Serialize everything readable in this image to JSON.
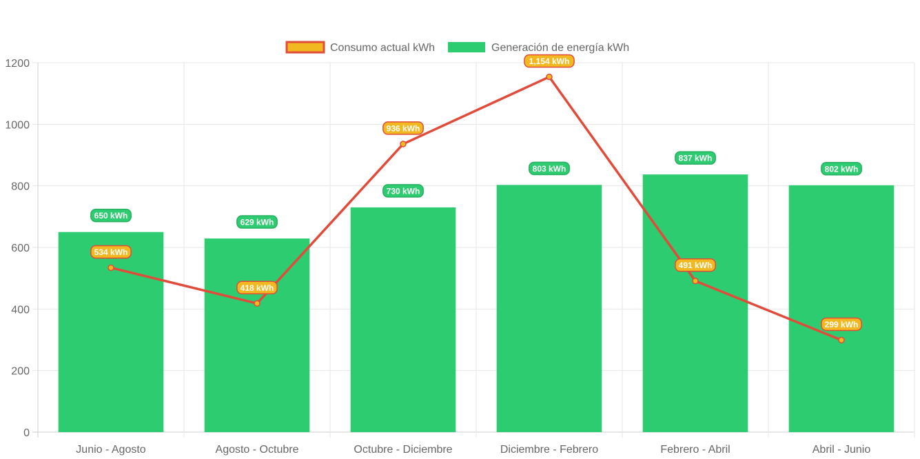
{
  "chart_data": {
    "type": "bar",
    "categories": [
      "Junio - Agosto",
      "Agosto - Octubre",
      "Octubre - Diciembre",
      "Diciembre - Febrero",
      "Febrero - Abril",
      "Abril - Junio"
    ],
    "ylim": [
      0,
      1200
    ],
    "yticks": [
      "0",
      "200",
      "400",
      "600",
      "800",
      "1000",
      "1200"
    ],
    "grid": true,
    "legend_position": "top",
    "series": [
      {
        "name": "Consumo actual kWh",
        "type": "line",
        "values": [
          534,
          418,
          936,
          1154,
          491,
          299
        ],
        "labels": [
          "534 kWh",
          "418 kWh",
          "936 kWh",
          "1,154 kWh",
          "491 kWh",
          "299 kWh"
        ],
        "color": "#e04b3a",
        "fill": "#f2b81f"
      },
      {
        "name": "Generación de energía kWh",
        "type": "bar",
        "values": [
          650,
          629,
          730,
          803,
          837,
          802
        ],
        "labels": [
          "650 kWh",
          "629 kWh",
          "730 kWh",
          "803 kWh",
          "837 kWh",
          "802 kWh"
        ],
        "color": "#2ecc71"
      }
    ]
  }
}
